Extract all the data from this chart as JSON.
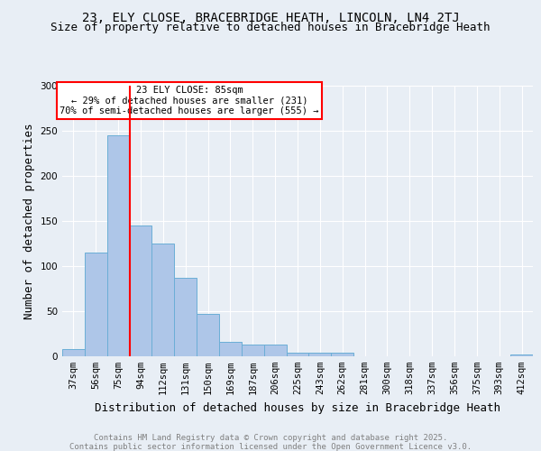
{
  "title1": "23, ELY CLOSE, BRACEBRIDGE HEATH, LINCOLN, LN4 2TJ",
  "title2": "Size of property relative to detached houses in Bracebridge Heath",
  "xlabel": "Distribution of detached houses by size in Bracebridge Heath",
  "ylabel": "Number of detached properties",
  "bar_labels": [
    "37sqm",
    "56sqm",
    "75sqm",
    "94sqm",
    "112sqm",
    "131sqm",
    "150sqm",
    "169sqm",
    "187sqm",
    "206sqm",
    "225sqm",
    "243sqm",
    "262sqm",
    "281sqm",
    "300sqm",
    "318sqm",
    "337sqm",
    "356sqm",
    "375sqm",
    "393sqm",
    "412sqm"
  ],
  "bar_values": [
    8,
    115,
    245,
    145,
    125,
    87,
    47,
    16,
    13,
    13,
    4,
    4,
    4,
    0,
    0,
    0,
    0,
    0,
    0,
    0,
    2
  ],
  "bar_color": "#aec6e8",
  "bar_edgecolor": "#6baed6",
  "redline_index": 2,
  "annotation_text": "23 ELY CLOSE: 85sqm\n← 29% of detached houses are smaller (231)\n70% of semi-detached houses are larger (555) →",
  "annotation_box_color": "white",
  "annotation_box_edgecolor": "red",
  "redline_color": "red",
  "background_color": "#e8eef5",
  "axes_background": "#e8eef5",
  "ylim": [
    0,
    300
  ],
  "yticks": [
    0,
    50,
    100,
    150,
    200,
    250,
    300
  ],
  "footer1": "Contains HM Land Registry data © Crown copyright and database right 2025.",
  "footer2": "Contains public sector information licensed under the Open Government Licence v3.0.",
  "title1_fontsize": 10,
  "title2_fontsize": 9,
  "tick_fontsize": 7.5,
  "label_fontsize": 9,
  "footer_fontsize": 6.5
}
